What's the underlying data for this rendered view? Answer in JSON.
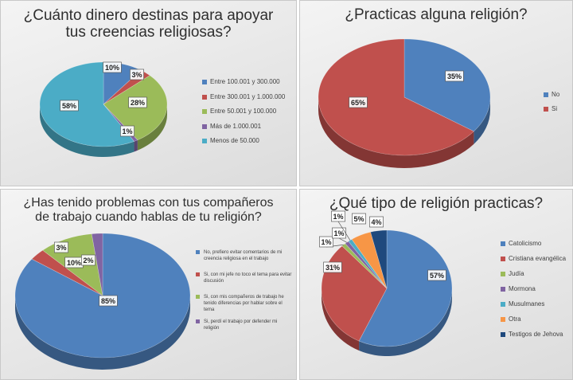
{
  "charts": [
    {
      "title_lines": [
        "¿Cuánto dinero destinas para apoyar",
        "tus creencias religiosas?"
      ],
      "chart_data": {
        "type": "pie",
        "title": "¿Cuánto dinero destinas para apoyar tus creencias religiosas?",
        "categories": [
          "Entre 100.001 y 300.000",
          "Entre 300.001 y 1.000.000",
          "Entre 50.001 y 100.000",
          "Más de 1.000.001",
          "Menos de 50.000"
        ],
        "values": [
          10,
          3,
          28,
          1,
          58
        ],
        "labels": [
          "10%",
          "3%",
          "28%",
          "1%",
          "58%"
        ],
        "colors": [
          "#4f81bd",
          "#c0504d",
          "#9bbb59",
          "#8064a2",
          "#4bacc6"
        ],
        "legend_position": "right",
        "style": "3d-pie"
      }
    },
    {
      "title_lines": [
        "¿Practicas alguna religión?"
      ],
      "chart_data": {
        "type": "pie",
        "title": "¿Practicas alguna religión?",
        "categories": [
          "No",
          "Si"
        ],
        "values": [
          35,
          65
        ],
        "labels": [
          "35%",
          "65%"
        ],
        "colors": [
          "#4f81bd",
          "#c0504d"
        ],
        "legend_position": "right",
        "style": "3d-pie"
      }
    },
    {
      "title_lines": [
        "¿Has tenido problemas con tus compañeros",
        "de trabajo cuando hablas de tu religión?"
      ],
      "chart_data": {
        "type": "pie",
        "title": "¿Has tenido problemas con tus compañeros de trabajo cuando hablas de tu religión?",
        "categories": [
          "No, prefiero evitar comentarios de mi creencia religiosa en el trabajo",
          "Si, con mi jefe no toco el tema para evitar discusión",
          "Si, con mis compañeros de trabajo he tenido diferencias por hablar sobre el tema",
          "Si, perdí el trabajo por defender mi religión"
        ],
        "values": [
          85,
          3,
          10,
          2
        ],
        "labels": [
          "85%",
          "3%",
          "10%",
          "2%"
        ],
        "colors": [
          "#4f81bd",
          "#c0504d",
          "#9bbb59",
          "#8064a2"
        ],
        "legend_position": "right",
        "style": "3d-pie"
      }
    },
    {
      "title_lines": [
        "¿Qué tipo de religión practicas?"
      ],
      "chart_data": {
        "type": "pie",
        "title": "¿Qué tipo de religión practicas?",
        "categories": [
          "Catolicismo",
          "Cristiana evangélica",
          "Judía",
          "Mormona",
          "Musulmanes",
          "Otra",
          "Testigos de Jehova"
        ],
        "values": [
          57,
          31,
          1,
          1,
          1,
          5,
          4
        ],
        "labels": [
          "57%",
          "31%",
          "1%",
          "1%",
          "1%",
          "5%",
          "4%"
        ],
        "colors": [
          "#4f81bd",
          "#c0504d",
          "#9bbb59",
          "#8064a2",
          "#4bacc6",
          "#f79646",
          "#1f497d"
        ],
        "legend_position": "right",
        "style": "3d-pie"
      }
    }
  ]
}
